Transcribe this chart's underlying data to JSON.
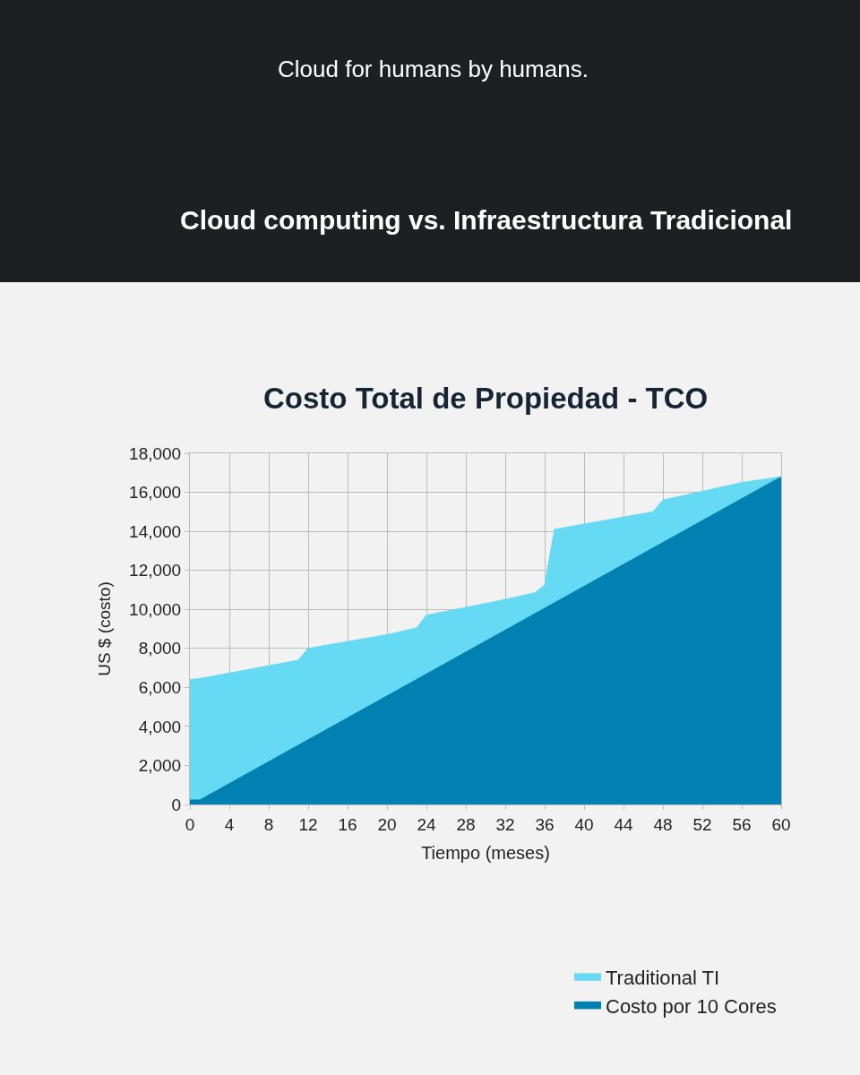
{
  "chart_data": {
    "type": "area",
    "title": "Cloud computing vs. Infraestructura Tradicional",
    "subtitle": "Costo Total de Propiedad - TCO",
    "xlabel": "Tiempo (meses)",
    "ylabel": "US $ (costo)",
    "annotations": [
      "Cloud for humans by humans."
    ],
    "series": [
      {
        "name": "Traditional TI",
        "color": "#66d9f3",
        "x": [
          0,
          1,
          10,
          11,
          12,
          20,
          23,
          24,
          27,
          31,
          35,
          36,
          37,
          47,
          48,
          56,
          60
        ],
        "values": [
          6400,
          6450,
          7300,
          7400,
          8000,
          8700,
          9050,
          9700,
          10000,
          10400,
          10850,
          11250,
          14100,
          15000,
          15600,
          16500,
          16800
        ]
      },
      {
        "name": "Costo por 10 Cores",
        "color": "#0081b1",
        "x": [
          0,
          1,
          60
        ],
        "values": [
          230,
          230,
          16800
        ]
      }
    ],
    "xlim": [
      0,
      60
    ],
    "xticks": [
      0,
      4,
      8,
      12,
      16,
      20,
      24,
      28,
      32,
      36,
      40,
      44,
      48,
      52,
      56,
      60
    ],
    "ylim": [
      0,
      18000
    ],
    "yticks": [
      0,
      {
        "value": 2000,
        "label": "2,000"
      },
      {
        "value": 4000,
        "label": "4,000"
      },
      {
        "value": 6000,
        "label": "6,000"
      },
      {
        "value": 8000,
        "label": "8,000"
      },
      {
        "value": 10000,
        "label": "10,000"
      },
      {
        "value": 12000,
        "label": "12,000"
      },
      {
        "value": 14000,
        "label": "14,000"
      },
      {
        "value": 16000,
        "label": "16,000"
      },
      {
        "value": 18000,
        "label": "18,000"
      }
    ],
    "grid": true,
    "legend": "bottom right"
  }
}
